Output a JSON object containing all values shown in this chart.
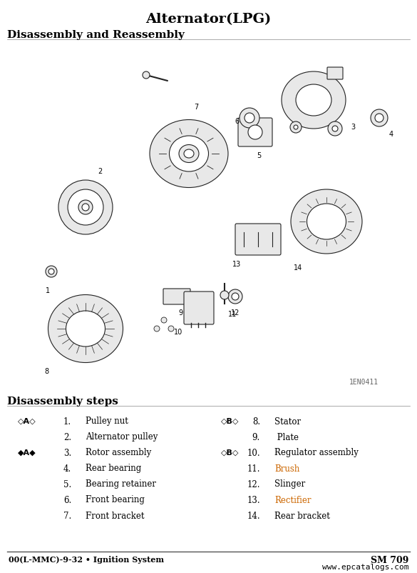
{
  "title": "Alternator(LPG)",
  "section1_title": "Disassembly and Reassembly",
  "section2_title": "Disassembly steps",
  "diagram_ref": "1EN0411",
  "footer_left": "00(L-MMC)-9-32 • Ignition System",
  "footer_right": "SM 709",
  "footer_url": "www.epcatalogs.com",
  "bg_color": "#ffffff",
  "text_color": "#000000",
  "steps_left": [
    {
      "num": "1.",
      "text": "Pulley nut",
      "marker": "◇A◇",
      "marker_row": true,
      "color": "#000000"
    },
    {
      "num": "2.",
      "text": "Alternator pulley",
      "marker": "",
      "marker_row": false,
      "color": "#000000"
    },
    {
      "num": "3.",
      "text": "Rotor assembly",
      "marker": "◆A◆",
      "marker_row": true,
      "color": "#000000"
    },
    {
      "num": "4.",
      "text": "Rear bearing",
      "marker": "",
      "marker_row": false,
      "color": "#000000"
    },
    {
      "num": "5.",
      "text": "Bearing retainer",
      "marker": "",
      "marker_row": false,
      "color": "#000000"
    },
    {
      "num": "6.",
      "text": "Front bearing",
      "marker": "",
      "marker_row": false,
      "color": "#000000"
    },
    {
      "num": "7.",
      "text": "Front bracket",
      "marker": "",
      "marker_row": false,
      "color": "#000000"
    }
  ],
  "steps_right": [
    {
      "num": "8.",
      "text": "Stator",
      "marker": "◇B◇",
      "marker_row": true,
      "color": "#000000"
    },
    {
      "num": "9.",
      "text": " Plate",
      "marker": "",
      "marker_row": false,
      "color": "#000000"
    },
    {
      "num": "10.",
      "text": "Regulator assembly",
      "marker": "◇B◇",
      "marker_row": true,
      "color": "#000000"
    },
    {
      "num": "11.",
      "text": "Brush",
      "marker": "",
      "marker_row": false,
      "color": "#cc6600"
    },
    {
      "num": "12.",
      "text": "Slinger",
      "marker": "",
      "marker_row": false,
      "color": "#000000"
    },
    {
      "num": "13.",
      "text": "Rectifier",
      "marker": "",
      "marker_row": false,
      "color": "#cc6600"
    },
    {
      "num": "14.",
      "text": "Rear bracket",
      "marker": "",
      "marker_row": false,
      "color": "#000000"
    }
  ]
}
